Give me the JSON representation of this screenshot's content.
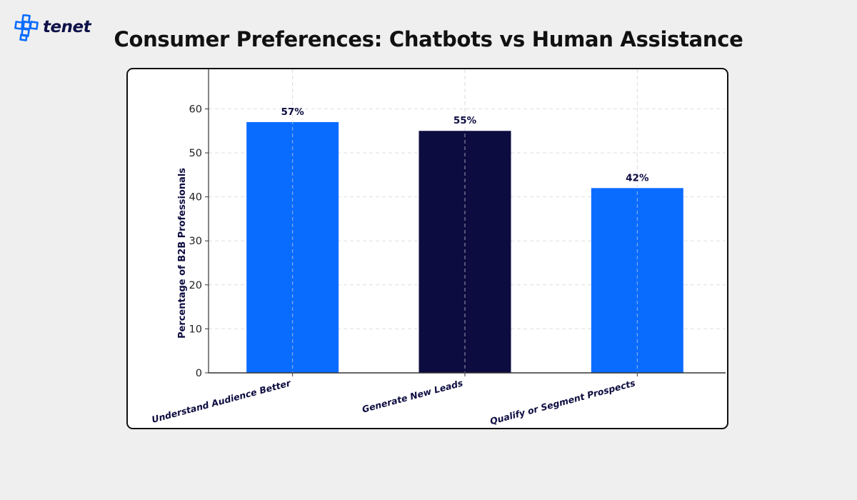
{
  "brand": {
    "name": "tenet",
    "colors": {
      "accent": "#0a6cff",
      "navy": "#0d0c40"
    }
  },
  "page": {
    "title": "Consumer Preferences: Chatbots vs Human Assistance"
  },
  "chart_data": {
    "type": "bar",
    "title": "Consumer Preferences: Chatbots vs Human Assistance",
    "xlabel": "",
    "ylabel": "Percentage of B2B Professionals",
    "ylim": [
      0,
      69
    ],
    "yticks": [
      0,
      10,
      20,
      30,
      40,
      50,
      60
    ],
    "grid": true,
    "categories": [
      "Understand Audience Better",
      "Generate New Leads",
      "Qualify or Segment Prospects"
    ],
    "values": [
      57,
      55,
      42
    ],
    "data_labels": [
      "57%",
      "55%",
      "42%"
    ],
    "colors": [
      "#0a6cff",
      "#0d0c40",
      "#0a6cff"
    ]
  }
}
